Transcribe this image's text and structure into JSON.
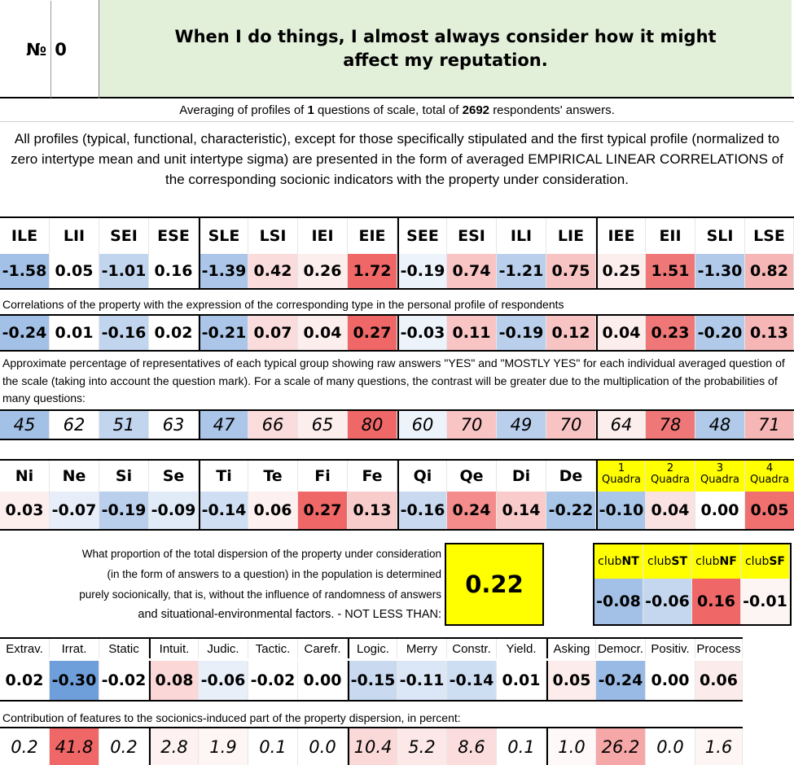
{
  "header": {
    "number_label": "№",
    "number_value": "0",
    "question": "When I do things, I almost always consider how it might affect my reputation."
  },
  "summary": {
    "prefix": "Averaging of profiles of",
    "questions": "1",
    "middle": "questions of scale, total of",
    "respondents": "2692",
    "suffix": "respondents' answers."
  },
  "description": "All profiles (typical, functional, characteristic), except for those specifically stipulated and the first typical profile (normalized to zero intertype mean and unit intertype sigma) are presented in the form of averaged EMPIRICAL LINEAR CORRELATIONS of the corresponding socionic indicators with the property under consideration.",
  "types": {
    "labels": [
      "ILE",
      "LII",
      "SEI",
      "ESE",
      "SLE",
      "LSI",
      "IEI",
      "EIE",
      "SEE",
      "ESI",
      "ILI",
      "LIE",
      "IEE",
      "EII",
      "SLI",
      "LSE"
    ],
    "normalized": [
      "-1.58",
      "0.05",
      "-1.01",
      "0.16",
      "-1.39",
      "0.42",
      "0.26",
      "1.72",
      "-0.19",
      "0.74",
      "-1.21",
      "0.75",
      "0.25",
      "1.51",
      "-1.30",
      "0.82"
    ],
    "normalized_colors": [
      "#a3c1e6",
      "#ffffff",
      "#c2d5ee",
      "#ffffff",
      "#abc6e8",
      "#fbdcdc",
      "#fdeeee",
      "#f06767",
      "#edf3fb",
      "#f8c4c4",
      "#b9cfec",
      "#f8c3c3",
      "#fdeeee",
      "#f07777",
      "#b1cae9",
      "#f7b6b6"
    ],
    "correlation_note": "Correlations of the property with the expression of the corresponding type in the personal profile of respondents",
    "correlations": [
      "-0.24",
      "0.01",
      "-0.16",
      "0.02",
      "-0.21",
      "0.07",
      "0.04",
      "0.27",
      "-0.03",
      "0.11",
      "-0.19",
      "0.12",
      "0.04",
      "0.23",
      "-0.20",
      "0.13"
    ],
    "correlation_colors": [
      "#a3c1e6",
      "#ffffff",
      "#c2d5ee",
      "#ffffff",
      "#abc6e8",
      "#fbdcdc",
      "#fdeeee",
      "#f06767",
      "#edf3fb",
      "#f8c4c4",
      "#b9cfec",
      "#f8c3c3",
      "#fdeeee",
      "#f07777",
      "#b1cae9",
      "#f7b6b6"
    ],
    "percent_note": "Approximate percentage of representatives of each typical group showing raw answers \"YES\" and \"MOSTLY YES\" for each individual averaged question of the scale (taking into account the question mark). For a scale of many questions, the contrast will be greater due to the multiplication of the probabilities of many questions:",
    "percentages": [
      "45",
      "62",
      "51",
      "63",
      "47",
      "66",
      "65",
      "80",
      "60",
      "70",
      "49",
      "70",
      "64",
      "78",
      "48",
      "71"
    ],
    "percentage_colors": [
      "#a3c1e6",
      "#ffffff",
      "#c2d5ee",
      "#ffffff",
      "#abc6e8",
      "#fbdcdc",
      "#fdeeee",
      "#f06767",
      "#edf3fb",
      "#f8c4c4",
      "#b9cfec",
      "#f8c3c3",
      "#fdeeee",
      "#f07777",
      "#b1cae9",
      "#f7b6b6"
    ]
  },
  "functions": {
    "labels": [
      "Ni",
      "Ne",
      "Si",
      "Se",
      "Ti",
      "Te",
      "Fi",
      "Fe",
      "Qi",
      "Qe",
      "Di",
      "De"
    ],
    "values": [
      "0.03",
      "-0.07",
      "-0.19",
      "-0.09",
      "-0.14",
      "0.06",
      "0.27",
      "0.13",
      "-0.16",
      "0.24",
      "0.14",
      "-0.22"
    ],
    "colors": [
      "#fdeeee",
      "#e7eef9",
      "#b9cfec",
      "#e1eaf7",
      "#cfdef2",
      "#fdf0f0",
      "#f06767",
      "#f9cccc",
      "#c9d9f0",
      "#f48c8c",
      "#f9cbcb",
      "#a9c5e8"
    ]
  },
  "quadras": {
    "numbers": [
      "1",
      "2",
      "3",
      "4"
    ],
    "word": "Quadra",
    "values": [
      "-0.10",
      "0.04",
      "0.00",
      "0.05"
    ],
    "colors": [
      "#aac6e8",
      "#fbe2e2",
      "#ffffff",
      "#f07070"
    ]
  },
  "dispersion": {
    "text_lines": [
      "What proportion of the total dispersion of the property under consideration",
      "(in the form of answers to a question) in the population is determined",
      "purely socionically, that is, without the influence of randomness of answers"
    ],
    "text_last": "and situational-environmental factors. - NOT LESS THAN:",
    "value": "0.22"
  },
  "clubs": {
    "prefix": "club",
    "labels": [
      "NT",
      "ST",
      "NF",
      "SF"
    ],
    "values": [
      "-0.08",
      "-0.06",
      "0.16",
      "-0.01"
    ],
    "colors": [
      "#a3c1e6",
      "#c4d7ef",
      "#f06767",
      "#fdf4f4"
    ]
  },
  "dichotomies": {
    "labels": [
      "Extrav.",
      "Irrat.",
      "Static",
      "Intuit.",
      "Judic.",
      "Tactic.",
      "Carefr.",
      "Logic.",
      "Merry",
      "Constr.",
      "Yield.",
      "Asking",
      "Democr.",
      "Positiv.",
      "Process"
    ],
    "values": [
      "0.02",
      "-0.30",
      "-0.02",
      "0.08",
      "-0.06",
      "-0.02",
      "0.00",
      "-0.15",
      "-0.11",
      "-0.14",
      "0.01",
      "0.05",
      "-0.24",
      "0.00",
      "0.06"
    ],
    "colors": [
      "#ffffff",
      "#6f9fdb",
      "#ffffff",
      "#fbd7d7",
      "#e8eff9",
      "#ffffff",
      "#ffffff",
      "#c8d9f0",
      "#dbe6f6",
      "#cedef2",
      "#ffffff",
      "#fdecec",
      "#99bae4",
      "#ffffff",
      "#fcebeb"
    ],
    "contribution_note": "Contribution of features to the socionics-induced part of the property dispersion, in percent:",
    "contributions": [
      "0.2",
      "41.8",
      "0.2",
      "2.8",
      "1.9",
      "0.1",
      "0.0",
      "10.4",
      "5.2",
      "8.6",
      "0.1",
      "1.0",
      "26.2",
      "0.0",
      "1.6"
    ],
    "contribution_colors": [
      "#ffffff",
      "#f06767",
      "#ffffff",
      "#fdf1f1",
      "#fef5f5",
      "#ffffff",
      "#ffffff",
      "#fbd9d9",
      "#fde8e8",
      "#fbdddd",
      "#ffffff",
      "#fef8f8",
      "#f6a8a8",
      "#ffffff",
      "#fef5f5"
    ]
  }
}
